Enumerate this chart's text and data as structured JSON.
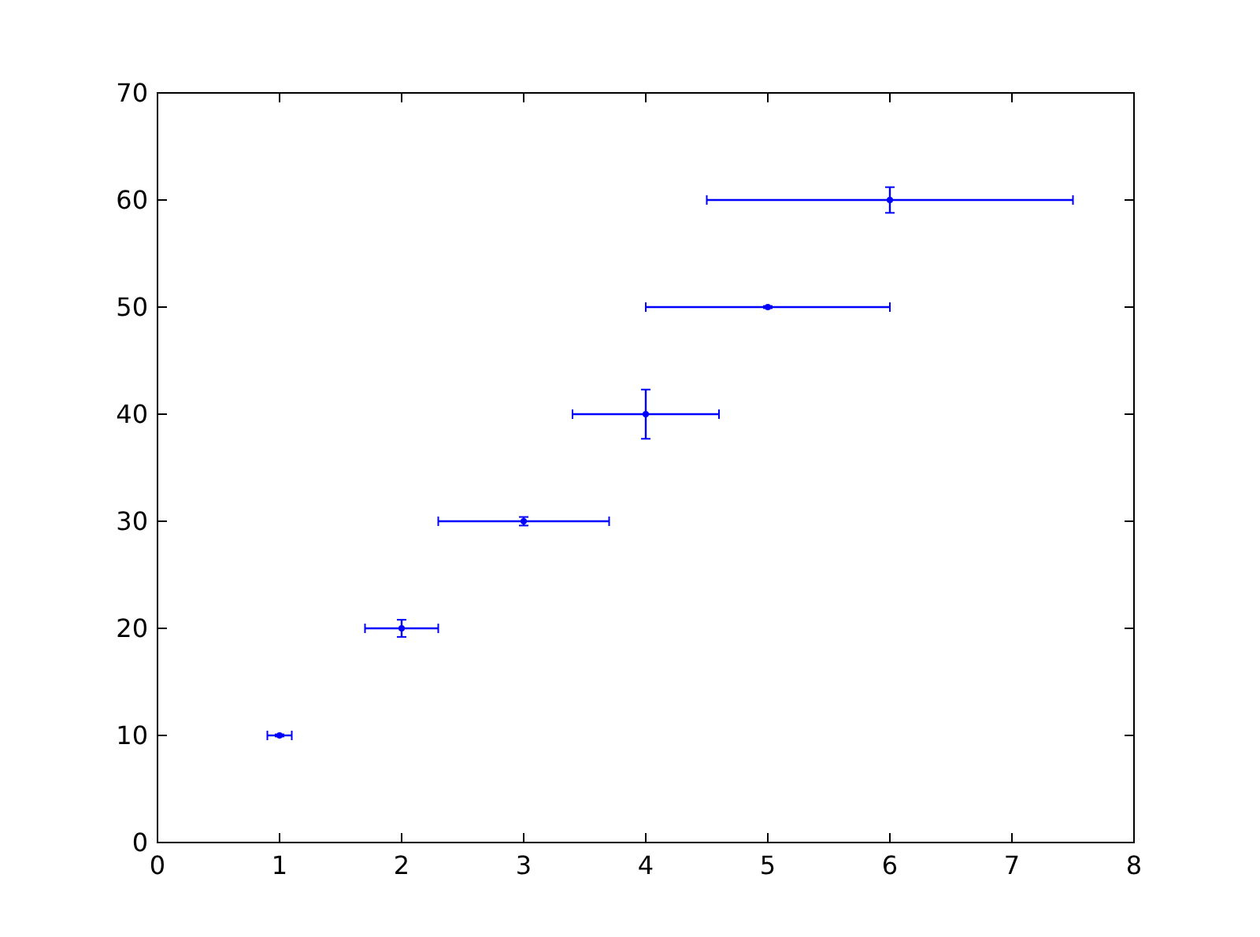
{
  "chart_data": {
    "type": "scatter",
    "x": [
      1,
      2,
      3,
      4,
      5,
      6
    ],
    "series": [
      {
        "color": "#0000ff",
        "values": [
          10,
          20,
          30,
          40,
          50,
          60
        ],
        "errors": [
          0.1,
          0.8,
          0.4,
          2.3,
          0.1,
          1.2
        ],
        "xerrors": [
          0.1,
          0.3,
          0.7,
          0.6,
          1.0,
          1.5
        ]
      }
    ],
    "xlim": [
      0,
      8
    ],
    "xticks": [
      0,
      1,
      2,
      3,
      4,
      5,
      6,
      7,
      8
    ],
    "ylim": [
      0,
      70
    ],
    "yticks": [
      0,
      10,
      20,
      30,
      40,
      50,
      60,
      70
    ],
    "grid": false
  }
}
